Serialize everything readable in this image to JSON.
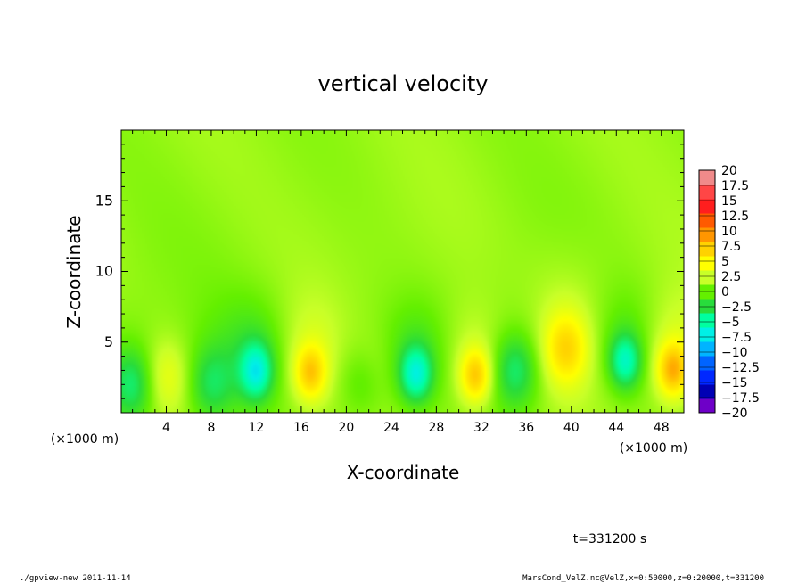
{
  "chart_data": {
    "type": "heatmap",
    "title": "vertical velocity",
    "xlabel": "X-coordinate",
    "ylabel": "Z-coordinate",
    "x_unit_label": "(×1000 m)",
    "y_unit_label": "(×1000 m)",
    "x_range": [
      0,
      50
    ],
    "y_range": [
      0,
      20
    ],
    "x_ticks": [
      "4",
      "8",
      "12",
      "16",
      "20",
      "24",
      "28",
      "32",
      "36",
      "40",
      "44",
      "48"
    ],
    "y_ticks": [
      "5",
      "10",
      "15"
    ],
    "colorbar_levels": [
      "20",
      "17.5",
      "15",
      "12.5",
      "10",
      "7.5",
      "5",
      "2.5",
      "0",
      "−2.5",
      "−5",
      "−7.5",
      "−10",
      "−12.5",
      "−15",
      "−17.5",
      "−20"
    ],
    "colorbar_colors": [
      "#f08a8a",
      "#ff4646",
      "#ff1e1e",
      "#ff5a00",
      "#ff9600",
      "#ffd200",
      "#ffff00",
      "#c8ff28",
      "#64f000",
      "#28dc3c",
      "#00ffa0",
      "#00f0e6",
      "#00b4ff",
      "#0064ff",
      "#0028ff",
      "#0000b4",
      "#6e00c8"
    ],
    "features": [
      {
        "x": 12.0,
        "z": 2.9,
        "value": -6.5
      },
      {
        "x": 26.2,
        "z": 2.7,
        "value": -6.5
      },
      {
        "x": 44.8,
        "z": 3.6,
        "value": -6.0
      },
      {
        "x": 16.8,
        "z": 2.8,
        "value": 5.5
      },
      {
        "x": 31.5,
        "z": 2.6,
        "value": 6.0
      },
      {
        "x": 39.5,
        "z": 4.5,
        "value": 5.0
      },
      {
        "x": 49.0,
        "z": 3.0,
        "value": 6.5
      },
      {
        "x": 4.0,
        "z": 2.5,
        "value": 3.0
      },
      {
        "x": 22.0,
        "z": 3.0,
        "value": 2.5
      },
      {
        "x": 1.0,
        "z": 2.0,
        "value": -4.5
      },
      {
        "x": 8.0,
        "z": 2.0,
        "value": -3.5
      },
      {
        "x": 21.5,
        "z": 2.5,
        "value": -3.5
      },
      {
        "x": 35.0,
        "z": 3.0,
        "value": -4.5
      }
    ]
  },
  "time_label": "t=331200 s",
  "footer": {
    "left": "./gpview-new  2011-11-14",
    "right": "MarsCond_VelZ.nc@VelZ,x=0:50000,z=0:20000,t=331200"
  }
}
